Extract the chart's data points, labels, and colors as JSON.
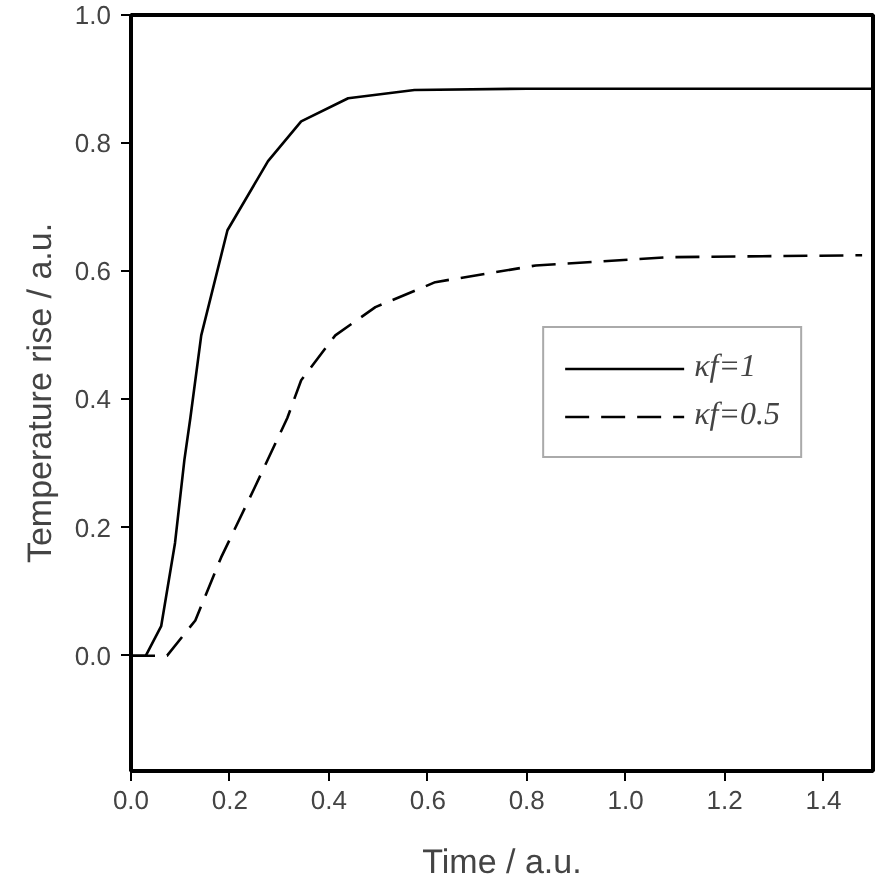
{
  "chart_data": {
    "type": "line",
    "xlabel": "Time / a.u.",
    "ylabel": "Temperature rise / a.u.",
    "xlim": [
      0,
      1.5
    ],
    "ylim": [
      -0.18,
      1.0
    ],
    "xticks": [
      {
        "value": 0,
        "label": "0.0"
      },
      {
        "value": 0.2,
        "label": "0.2"
      },
      {
        "value": 0.4,
        "label": "0.4"
      },
      {
        "value": 0.6,
        "label": "0.6"
      },
      {
        "value": 0.8,
        "label": "0.8"
      },
      {
        "value": 1.0,
        "label": "1.0"
      },
      {
        "value": 1.2,
        "label": "1.2"
      },
      {
        "value": 1.4,
        "label": "1.4"
      }
    ],
    "yticks": [
      {
        "value": 0,
        "label": "0.0"
      },
      {
        "value": 0.2,
        "label": "0.2"
      },
      {
        "value": 0.4,
        "label": "0.4"
      },
      {
        "value": 0.6,
        "label": "0.6"
      },
      {
        "value": 0.8,
        "label": "0.8"
      },
      {
        "value": 1.0,
        "label": "1.0"
      }
    ],
    "grid": false,
    "legend": "right",
    "series": [
      {
        "name": "κf=1",
        "color": "#000000",
        "line_style": "solid",
        "x": [
          0,
          0.03,
          0.061,
          0.089,
          0.108,
          0.12,
          0.142,
          0.195,
          0.277,
          0.344,
          0.439,
          0.573,
          0.8,
          1.1,
          1.5
        ],
        "values": [
          0,
          0,
          0.046,
          0.176,
          0.306,
          0.371,
          0.5,
          0.664,
          0.772,
          0.834,
          0.87,
          0.883,
          0.885,
          0.885,
          0.885
        ]
      },
      {
        "name": "κf=0.5",
        "color": "#000000",
        "line_style": "dashed",
        "x": [
          0,
          0.073,
          0.13,
          0.182,
          0.251,
          0.316,
          0.344,
          0.413,
          0.494,
          0.615,
          0.818,
          1.085,
          1.478
        ],
        "values": [
          0,
          0,
          0.055,
          0.153,
          0.264,
          0.371,
          0.43,
          0.5,
          0.544,
          0.583,
          0.609,
          0.622,
          0.625
        ]
      }
    ]
  }
}
